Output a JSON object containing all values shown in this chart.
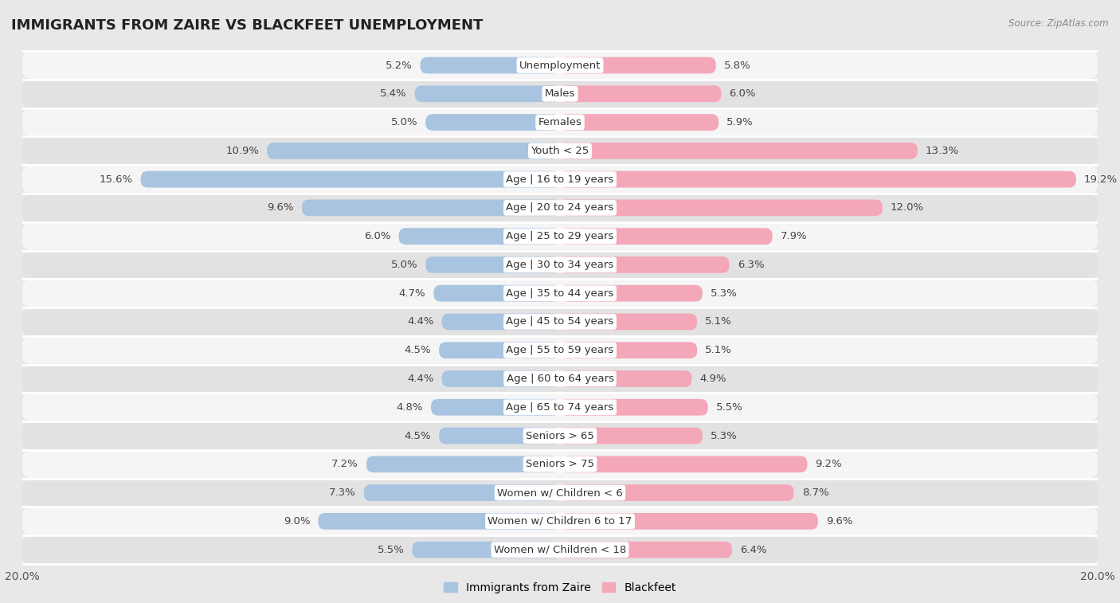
{
  "title": "IMMIGRANTS FROM ZAIRE VS BLACKFEET UNEMPLOYMENT",
  "source": "Source: ZipAtlas.com",
  "categories": [
    "Unemployment",
    "Males",
    "Females",
    "Youth < 25",
    "Age | 16 to 19 years",
    "Age | 20 to 24 years",
    "Age | 25 to 29 years",
    "Age | 30 to 34 years",
    "Age | 35 to 44 years",
    "Age | 45 to 54 years",
    "Age | 55 to 59 years",
    "Age | 60 to 64 years",
    "Age | 65 to 74 years",
    "Seniors > 65",
    "Seniors > 75",
    "Women w/ Children < 6",
    "Women w/ Children 6 to 17",
    "Women w/ Children < 18"
  ],
  "left_values": [
    5.2,
    5.4,
    5.0,
    10.9,
    15.6,
    9.6,
    6.0,
    5.0,
    4.7,
    4.4,
    4.5,
    4.4,
    4.8,
    4.5,
    7.2,
    7.3,
    9.0,
    5.5
  ],
  "right_values": [
    5.8,
    6.0,
    5.9,
    13.3,
    19.2,
    12.0,
    7.9,
    6.3,
    5.3,
    5.1,
    5.1,
    4.9,
    5.5,
    5.3,
    9.2,
    8.7,
    9.6,
    6.4
  ],
  "left_color": "#a8c4e0",
  "right_color": "#f4a7b9",
  "background_color": "#e8e8e8",
  "row_bg_light": "#f5f5f5",
  "row_bg_dark": "#e2e2e2",
  "xlim": 20.0,
  "bar_height": 0.58,
  "legend_left_label": "Immigrants from Zaire",
  "legend_right_label": "Blackfeet",
  "label_fontsize": 9.5,
  "value_fontsize": 9.5,
  "title_fontsize": 13
}
